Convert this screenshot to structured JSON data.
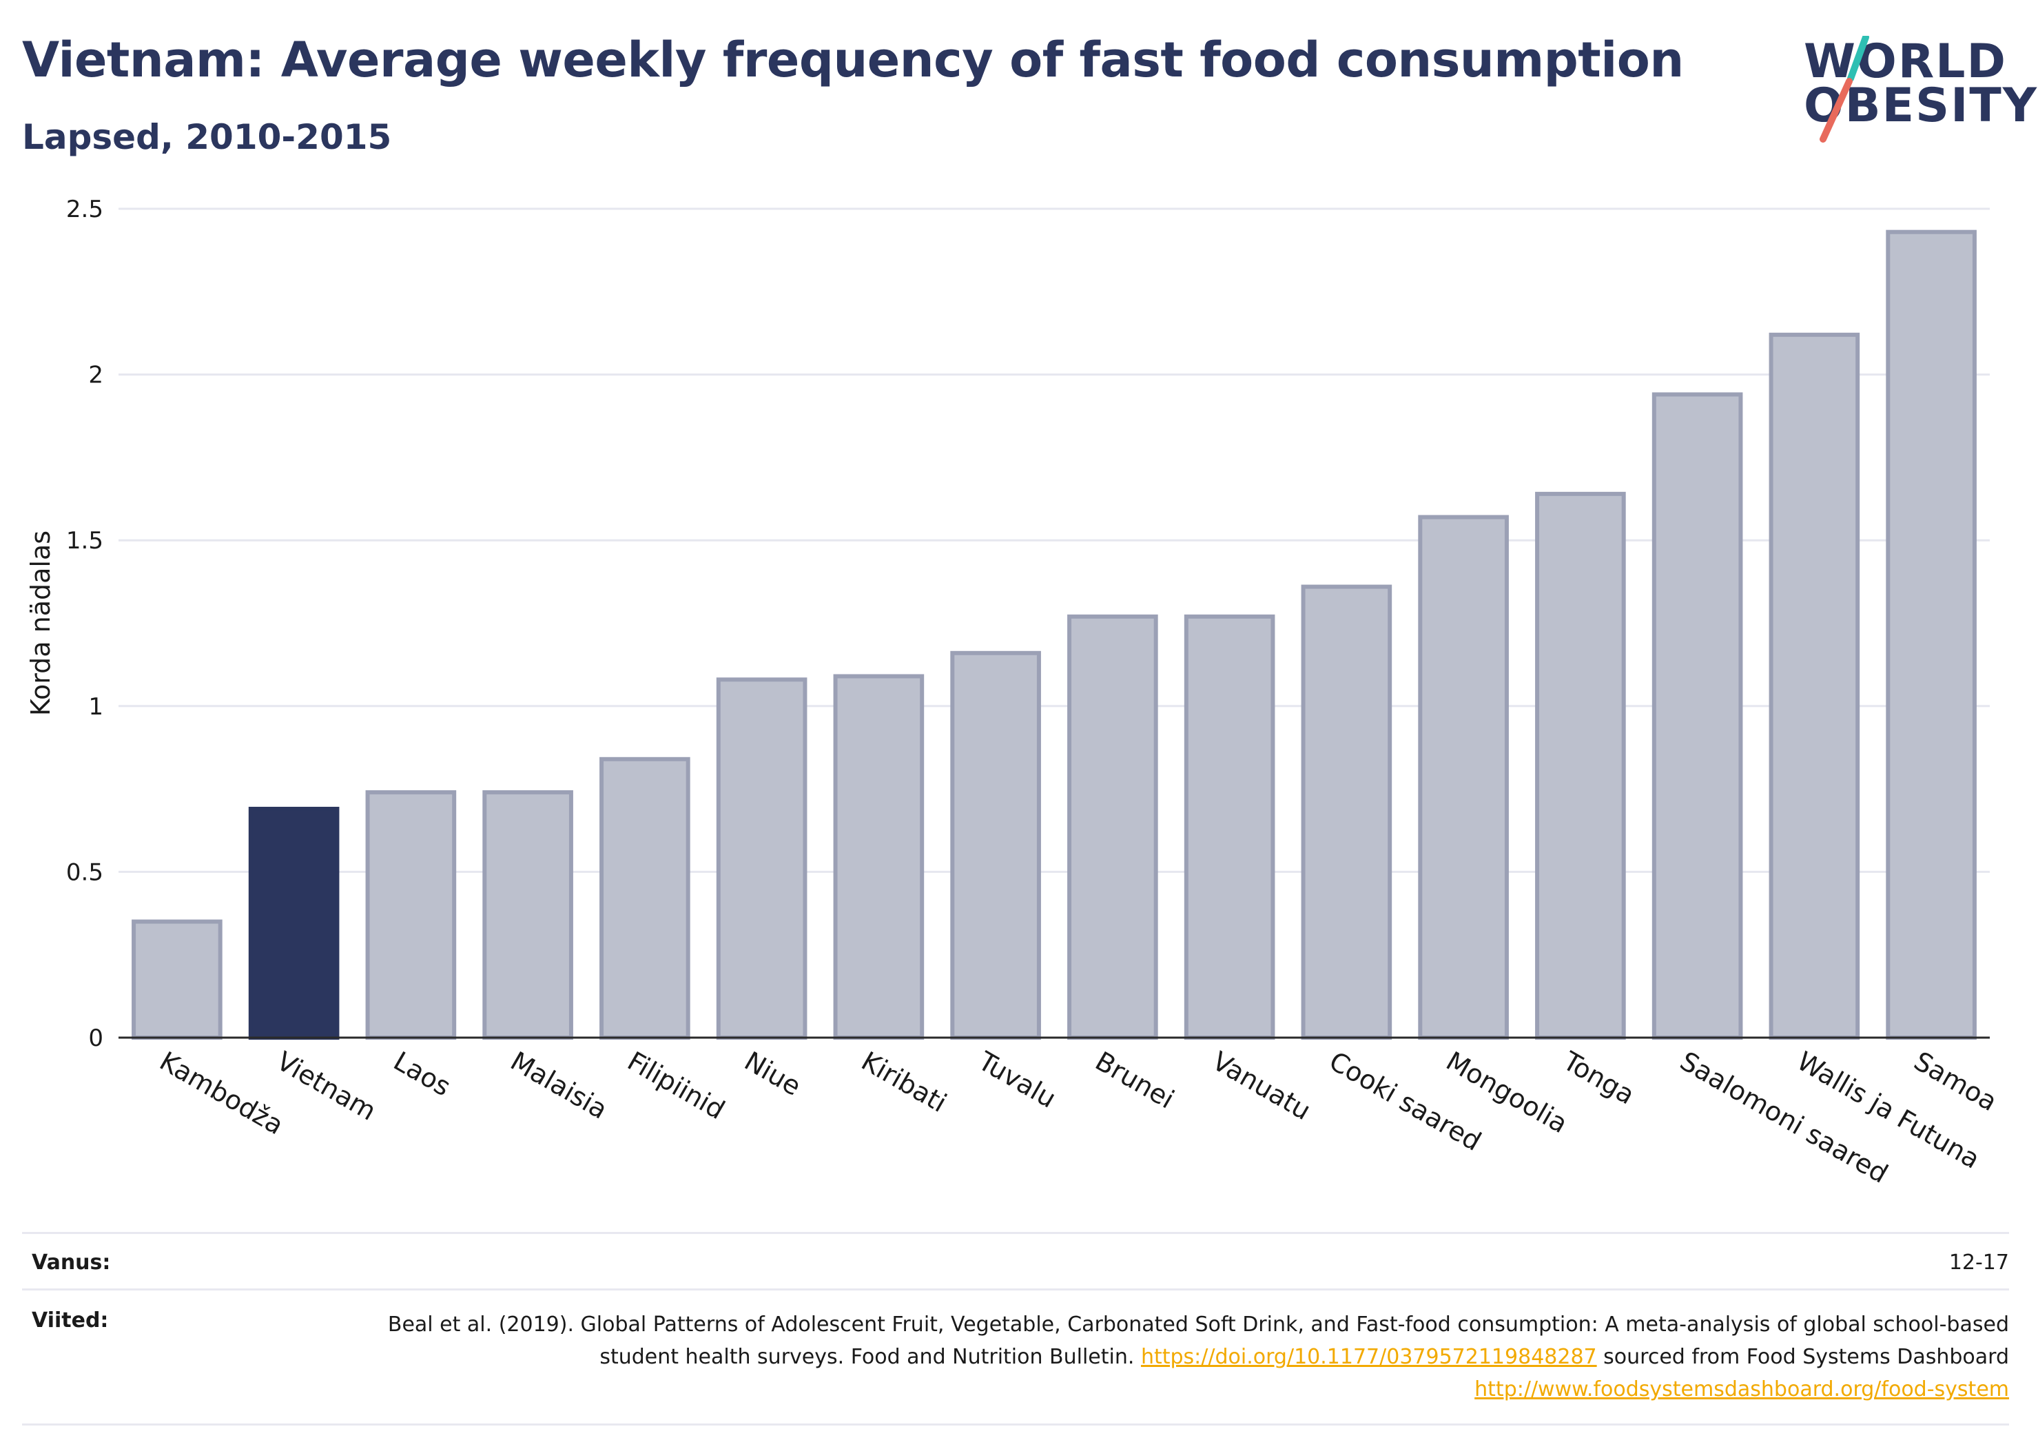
{
  "header": {
    "title": "Vietnam: Average weekly frequency of fast food consumption",
    "subtitle": "Lapsed, 2010-2015"
  },
  "logo": {
    "line1": "WORLD",
    "line2": "OBESITY",
    "icon": "world-obesity-logo"
  },
  "colors": {
    "highlight": "#2b365e",
    "bar": "#bcc0cd",
    "bar_stroke": "#9ba0b5",
    "grid": "#e6e7ef",
    "accent_teal": "#2ebfb3",
    "accent_coral": "#e86a5c",
    "link": "#f2a900"
  },
  "chart_data": {
    "type": "bar",
    "ylabel": "Korda nädalas",
    "xlabel": "",
    "ylim": [
      0,
      2.5
    ],
    "yticks": [
      0,
      0.5,
      1,
      1.5,
      2,
      2.5
    ],
    "ytick_labels": [
      "0",
      "0.5",
      "1",
      "1.5",
      "2",
      "2.5"
    ],
    "grid": true,
    "highlight": "Vietnam",
    "categories": [
      "Kambodža",
      "Vietnam",
      "Laos",
      "Malaisia",
      "Filipiinid",
      "Niue",
      "Kiribati",
      "Tuvalu",
      "Brunei",
      "Vanuatu",
      "Cooki saared",
      "Mongoolia",
      "Tonga",
      "Saalomoni saared",
      "Wallis ja Futuna",
      "Samoa"
    ],
    "values": [
      0.35,
      0.69,
      0.74,
      0.74,
      0.84,
      1.08,
      1.09,
      1.16,
      1.27,
      1.27,
      1.36,
      1.57,
      1.64,
      1.94,
      2.12,
      2.43
    ]
  },
  "footer": {
    "age_label": "Vanus:",
    "age_value": "12-17",
    "refs_label": "Viited:",
    "ref_text_1": "Beal et al. (2019). Global Patterns of Adolescent Fruit, Vegetable, Carbonated Soft Drink, and Fast-food consumption: A meta-analysis of global school-based student health surveys. Food and Nutrition Bulletin.",
    "ref_link_1": "https://doi.org/10.1177/0379572119848287",
    "ref_text_2": "sourced from Food Systems Dashboard",
    "ref_link_2": "http://www.foodsystemsdashboard.org/food-system"
  }
}
